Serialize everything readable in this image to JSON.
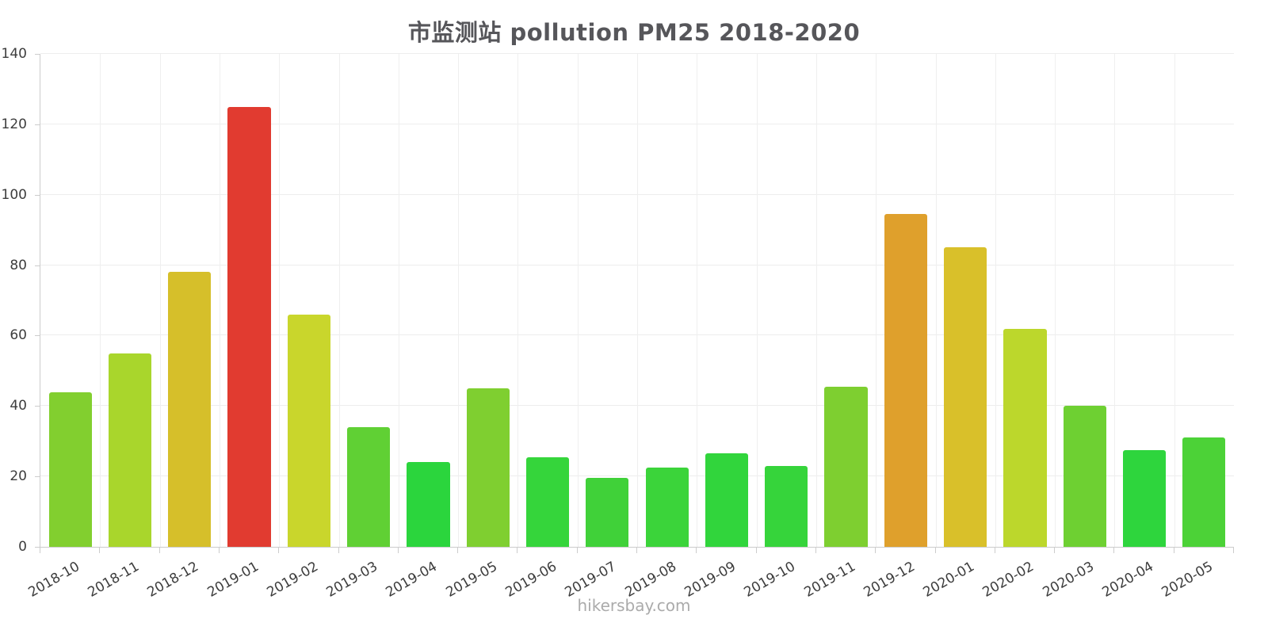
{
  "title": "市监测站 pollution PM25 2018-2020",
  "watermark": "hikersbay.com",
  "chart_data": {
    "type": "bar",
    "title": "市监测站 pollution PM25 2018-2020",
    "xlabel": "",
    "ylabel": "",
    "ylim": [
      0,
      140
    ],
    "yticks": [
      0,
      20,
      40,
      60,
      80,
      100,
      120,
      140
    ],
    "grid": true,
    "legend": false,
    "categories": [
      "2018-10",
      "2018-11",
      "2018-12",
      "2019-01",
      "2019-02",
      "2019-03",
      "2019-04",
      "2019-05",
      "2019-06",
      "2019-07",
      "2019-08",
      "2019-09",
      "2019-10",
      "2019-11",
      "2019-12",
      "2020-01",
      "2020-02",
      "2020-03",
      "2020-04",
      "2020-05"
    ],
    "values": [
      44,
      55,
      78,
      125,
      66,
      34,
      24,
      45,
      25.5,
      19.5,
      22.5,
      26.5,
      23,
      45.5,
      94.5,
      85,
      62,
      40,
      27.5,
      31
    ],
    "bar_colors": [
      "#82cf2f",
      "#a9d62c",
      "#d6bf2a",
      "#e13b30",
      "#c9d62c",
      "#60d034",
      "#2bd53d",
      "#7fcf30",
      "#35d53b",
      "#40d139",
      "#3bd43a",
      "#31d53c",
      "#36d43b",
      "#7ecf30",
      "#dfa02c",
      "#d9c02a",
      "#bcd72c",
      "#6ed032",
      "#2ed53d",
      "#4cd237"
    ],
    "grid_color": "#ededed",
    "axis_color": "#cccccc"
  }
}
